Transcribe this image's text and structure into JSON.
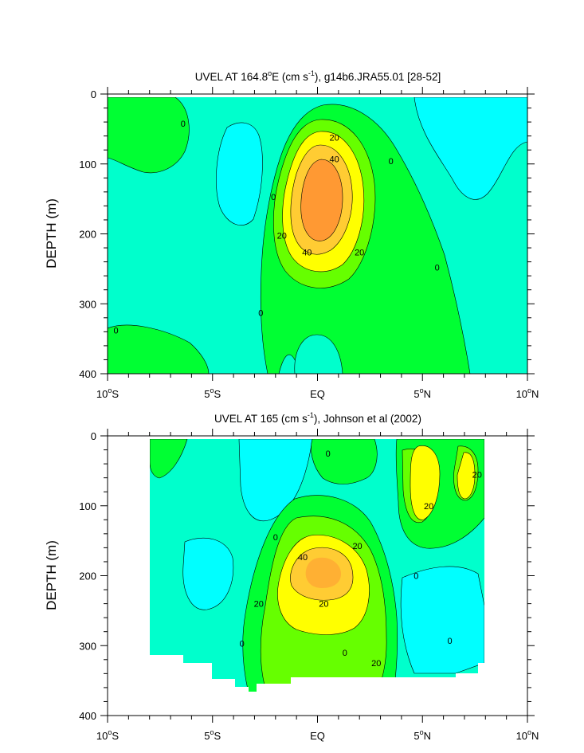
{
  "chart_data": [
    {
      "type": "contour",
      "title": "UVEL AT 164.8°E (cm s-1), g14b6.JRA55.01 [28-52]",
      "title_parts": {
        "a": "UVEL AT 164.8",
        "b": "E (cm s",
        "c": "-1",
        "d": "), g14b6.JRA55.01 [28-52]"
      },
      "ylabel": "DEPTH (m)",
      "xlim": [
        -10,
        10
      ],
      "ylim": [
        0,
        400
      ],
      "y_inverted": true,
      "yticks": [
        0,
        100,
        200,
        300,
        400
      ],
      "contour_levels": [
        0,
        10,
        20,
        30,
        40,
        50
      ],
      "colors": {
        "lt0": "#00ffff",
        "c0": "#00ffcc",
        "c10": "#00ff33",
        "c20": "#66ff00",
        "c30": "#ffff00",
        "c40": "#ffcc33",
        "c50": "#ff9933",
        "line": "#000000"
      },
      "core": {
        "lon": 0.0,
        "depth": 155,
        "max_speed": 55
      },
      "contour_labels": [
        {
          "lon": -6.4,
          "depth": 42,
          "text": "0"
        },
        {
          "lon": -2.1,
          "depth": 147,
          "text": "0"
        },
        {
          "lon": -2.7,
          "depth": 313,
          "text": "0"
        },
        {
          "lon": -9.6,
          "depth": 338,
          "text": "0"
        },
        {
          "lon": 3.5,
          "depth": 96,
          "text": "0"
        },
        {
          "lon": 5.7,
          "depth": 248,
          "text": "0"
        },
        {
          "lon": 0.8,
          "depth": 62,
          "text": "20"
        },
        {
          "lon": 0.8,
          "depth": 93,
          "text": "40"
        },
        {
          "lon": -1.7,
          "depth": 202,
          "text": "20"
        },
        {
          "lon": -0.5,
          "depth": 226,
          "text": "40"
        },
        {
          "lon": 2.0,
          "depth": 226,
          "text": "20"
        }
      ]
    },
    {
      "type": "contour",
      "title": "UVEL AT 165 (cm s-1), Johnson et al (2002)",
      "title_parts": {
        "a": "UVEL AT 165 (cm s",
        "b": "-1",
        "c": "), Johnson et al (2002)"
      },
      "ylabel": "DEPTH (m)",
      "xlim": [
        -10,
        10
      ],
      "ylim": [
        0,
        400
      ],
      "y_inverted": true,
      "yticks": [
        0,
        100,
        200,
        300,
        400
      ],
      "data_extent": {
        "lon": [
          -8,
          8
        ],
        "depth_top": 5,
        "depth_bottom_approx": 350
      },
      "contour_levels": [
        0,
        10,
        20,
        30,
        40
      ],
      "colors": {
        "lt0": "#00ffff",
        "c0": "#00ffcc",
        "c10": "#00ff33",
        "c20": "#66ff00",
        "c30": "#ffff00",
        "c40": "#ffcc33",
        "line": "#000000"
      },
      "core": {
        "lon": 0.0,
        "depth": 185,
        "max_speed": 45
      },
      "contour_labels": [
        {
          "lon": 0.5,
          "depth": 25,
          "text": "0"
        },
        {
          "lon": -2.0,
          "depth": 145,
          "text": "0"
        },
        {
          "lon": 4.7,
          "depth": 200,
          "text": "0"
        },
        {
          "lon": -3.6,
          "depth": 297,
          "text": "0"
        },
        {
          "lon": 6.3,
          "depth": 293,
          "text": "0"
        },
        {
          "lon": 1.3,
          "depth": 310,
          "text": "0"
        },
        {
          "lon": -0.7,
          "depth": 173,
          "text": "40"
        },
        {
          "lon": 1.9,
          "depth": 157,
          "text": "20"
        },
        {
          "lon": -2.8,
          "depth": 240,
          "text": "20"
        },
        {
          "lon": 0.3,
          "depth": 240,
          "text": "20"
        },
        {
          "lon": 2.8,
          "depth": 325,
          "text": "20"
        },
        {
          "lon": 5.3,
          "depth": 100,
          "text": "20"
        },
        {
          "lon": 7.6,
          "depth": 55,
          "text": "20"
        }
      ]
    }
  ],
  "xticks": [
    {
      "v": -10,
      "a": "10",
      "b": "o",
      "c": "S"
    },
    {
      "v": -5,
      "a": "5",
      "b": "o",
      "c": "S"
    },
    {
      "v": 0,
      "a": "EQ",
      "b": "",
      "c": ""
    },
    {
      "v": 5,
      "a": "5",
      "b": "o",
      "c": "N"
    },
    {
      "v": 10,
      "a": "10",
      "b": "o",
      "c": "N"
    }
  ]
}
